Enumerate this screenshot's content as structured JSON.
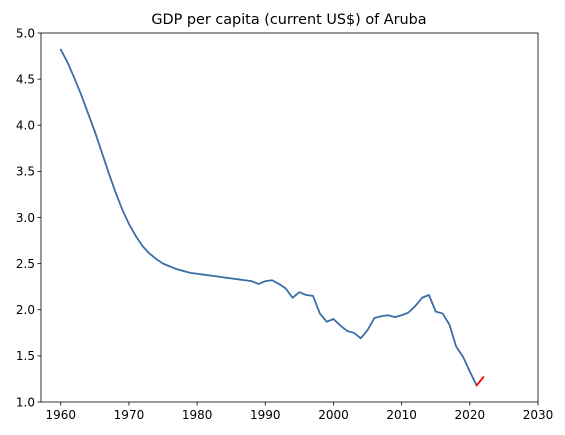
{
  "chart_data": {
    "type": "line",
    "title": "GDP per capita (current US$) of Aruba",
    "xlabel": "",
    "ylabel": "",
    "xlim": [
      1957.1,
      2030
    ],
    "ylim": [
      1.0,
      5.0
    ],
    "x_ticks": [
      "1960",
      "1970",
      "1980",
      "1990",
      "2000",
      "2010",
      "2020",
      "2030"
    ],
    "y_ticks": [
      "1.0",
      "1.5",
      "2.0",
      "2.5",
      "3.0",
      "3.5",
      "4.0",
      "4.5",
      "5.0"
    ],
    "grid": false,
    "legend": "none",
    "series": [
      {
        "color": "#3a6ea5",
        "x": [
          1960,
          1961,
          1962,
          1963,
          1964,
          1965,
          1966,
          1967,
          1968,
          1969,
          1970,
          1971,
          1972,
          1973,
          1974,
          1975,
          1976,
          1977,
          1978,
          1979,
          1980,
          1981,
          1982,
          1983,
          1984,
          1985,
          1986,
          1987,
          1988,
          1989,
          1990,
          1991,
          1992,
          1993,
          1994,
          1995,
          1996,
          1997,
          1998,
          1999,
          2000,
          2001,
          2002,
          2003,
          2004,
          2005,
          2006,
          2007,
          2008,
          2009,
          2010,
          2011,
          2012,
          2013,
          2014,
          2015,
          2016,
          2017,
          2018,
          2019,
          2020,
          2021
        ],
        "y": [
          4.82,
          4.68,
          4.51,
          4.33,
          4.13,
          3.93,
          3.71,
          3.49,
          3.28,
          3.09,
          2.93,
          2.8,
          2.69,
          2.61,
          2.55,
          2.5,
          2.47,
          2.44,
          2.42,
          2.4,
          2.39,
          2.38,
          2.37,
          2.36,
          2.35,
          2.34,
          2.33,
          2.32,
          2.31,
          2.28,
          2.31,
          2.32,
          2.28,
          2.23,
          2.13,
          2.19,
          2.16,
          2.15,
          1.96,
          1.87,
          1.9,
          1.83,
          1.77,
          1.75,
          1.69,
          1.78,
          1.91,
          1.93,
          1.94,
          1.92,
          1.94,
          1.97,
          2.04,
          2.13,
          2.16,
          1.98,
          1.96,
          1.84,
          1.6,
          1.49,
          1.33,
          1.18
        ]
      },
      {
        "color": "#ff0000",
        "x": [
          2021,
          2022
        ],
        "y": [
          1.18,
          1.27
        ]
      }
    ]
  }
}
